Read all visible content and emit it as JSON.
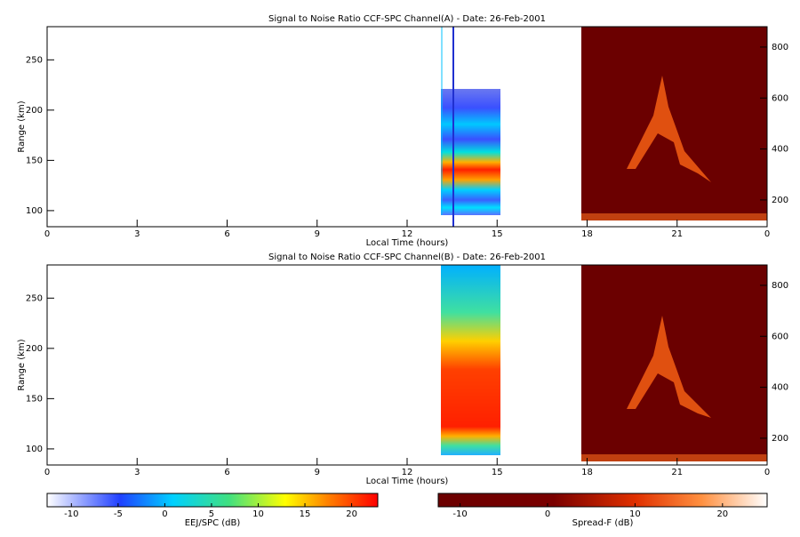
{
  "chart_data": [
    {
      "type": "heatmap",
      "title": "Signal to Noise Ratio CCF-SPC Channel(A) - Date: 26-Feb-2001",
      "xlabel": "Local Time (hours)",
      "ylabel": "Range (km)",
      "xlim": [
        0,
        24
      ],
      "xticks": [
        0,
        3,
        6,
        9,
        12,
        15,
        18,
        21,
        {
          "value": 24,
          "label": "0"
        }
      ],
      "ylim": [
        84,
        283
      ],
      "yticks": [
        100,
        150,
        200,
        250
      ],
      "y2lim": [
        95,
        880
      ],
      "y2ticks": [
        200,
        400,
        600,
        800
      ]
    },
    {
      "type": "heatmap",
      "title": "Signal to Noise Ratio CCF-SPC Channel(B) - Date: 26-Feb-2001",
      "xlabel": "Local Time (hours)",
      "ylabel": "Range (km)",
      "xlim": [
        0,
        24
      ],
      "xticks": [
        0,
        3,
        6,
        9,
        12,
        15,
        18,
        21,
        {
          "value": 24,
          "label": "0"
        }
      ],
      "ylim": [
        84,
        283
      ],
      "yticks": [
        100,
        150,
        200,
        250
      ],
      "y2lim": [
        95,
        880
      ],
      "y2ticks": [
        200,
        400,
        600,
        800
      ]
    }
  ],
  "colorbars": [
    {
      "label": "EEJ/SPC (dB)",
      "lim": [
        -12.6,
        22.8
      ],
      "ticks": [
        -10,
        -5,
        0,
        5,
        10,
        15,
        20
      ]
    },
    {
      "label": "Spread-F (dB)",
      "lim": [
        -12.5,
        25.1
      ],
      "ticks": [
        -10,
        0,
        10,
        20
      ]
    }
  ]
}
